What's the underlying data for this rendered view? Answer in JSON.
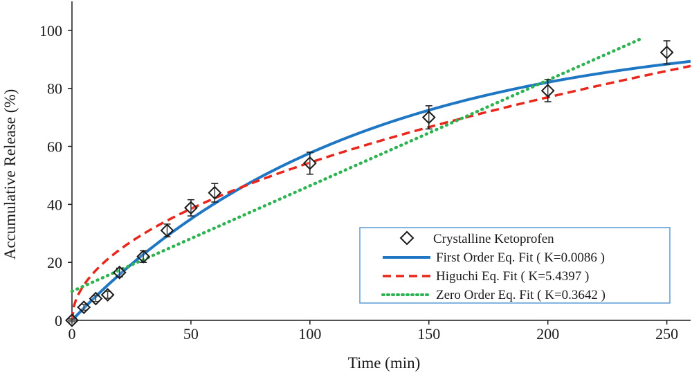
{
  "chart_data": {
    "type": "scatter",
    "title": "",
    "xlabel": "Time (min)",
    "ylabel": "Accumulative Release (%)",
    "xlim": [
      0,
      260
    ],
    "ylim": [
      0,
      110
    ],
    "xticks": [
      0,
      50,
      100,
      150,
      200,
      250
    ],
    "yticks": [
      0,
      20,
      40,
      60,
      80,
      100
    ],
    "grid": false,
    "legend_position": "bottom-right",
    "points": {
      "name": "Crystalline Ketoprofen",
      "x": [
        0,
        5,
        10,
        15,
        20,
        30,
        40,
        50,
        60,
        100,
        150,
        200,
        250
      ],
      "y": [
        0,
        4.5,
        7.5,
        8.8,
        16.5,
        22,
        31,
        38.8,
        44,
        54.2,
        70,
        79.2,
        92.4
      ],
      "err": [
        0.5,
        1,
        1,
        1.2,
        1.5,
        2,
        2.2,
        2.8,
        3.2,
        3.8,
        4,
        3.8,
        4
      ]
    },
    "fits": [
      {
        "name": "First Order Eq. Fit ( K=0.0086 )",
        "model": "first_order",
        "k": 0.0086,
        "color": "#1f77c4",
        "style": "solid"
      },
      {
        "name": "Higuchi Eq. Fit ( K=5.4397 )",
        "model": "higuchi",
        "k": 5.4397,
        "color": "#e8261c",
        "style": "dashed"
      },
      {
        "name": "Zero Order Eq. Fit ( K=0.3642 )",
        "model": "zero_order",
        "k": 0.3642,
        "color": "#2db352",
        "style": "dotted"
      }
    ]
  }
}
